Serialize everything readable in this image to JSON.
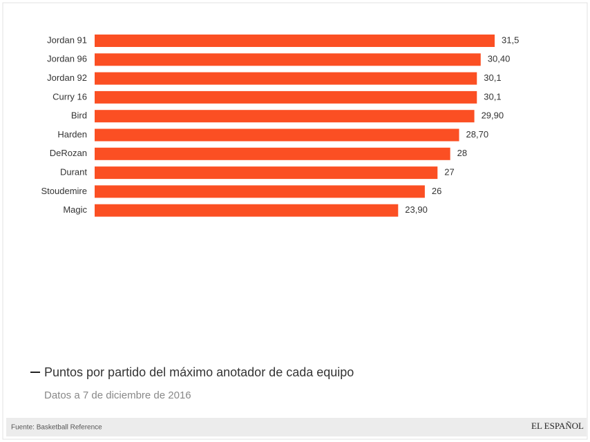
{
  "chart_data": {
    "type": "bar",
    "categories": [
      "Jordan 91",
      "Jordan 96",
      "Jordan 92",
      "Curry 16",
      "Bird",
      "Harden",
      "DeRozan",
      "Durant",
      "Stoudemire",
      "Magic"
    ],
    "series": [
      {
        "name": "Puntos por partido del máximo anotador de cada equipo",
        "color": "#fb4f23",
        "values": [
          31.5,
          30.4,
          30.1,
          30.1,
          29.9,
          28.7,
          28,
          27,
          26,
          23.9
        ],
        "value_labels": [
          "31,5",
          "30,40",
          "30,1",
          "30,1",
          "29,90",
          "28,70",
          "28",
          "27",
          "26",
          "23,90"
        ]
      }
    ],
    "subtitle": "Datos a 7 de diciembre de 2016"
  },
  "footer": {
    "source": "Fuente: Basketball Reference",
    "brand": "EL ESPAÑOL"
  }
}
